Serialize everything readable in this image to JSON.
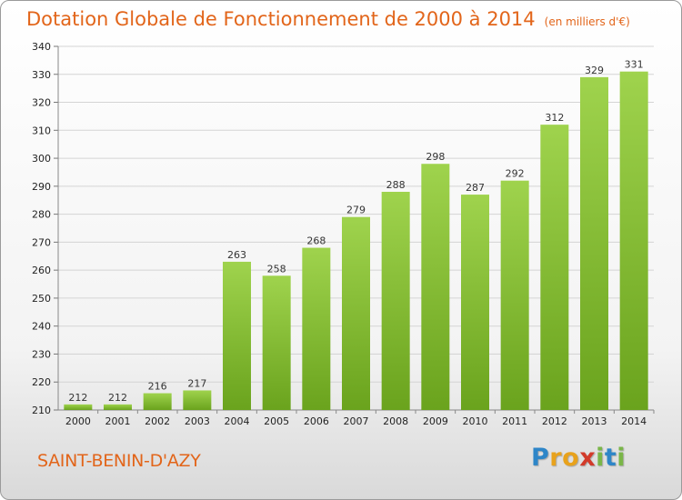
{
  "chart_data": {
    "type": "bar",
    "title": "Dotation Globale de Fonctionnement de 2000 à 2014",
    "unit": "(en milliers d'€)",
    "categories": [
      "2000",
      "2001",
      "2002",
      "2003",
      "2004",
      "2005",
      "2006",
      "2007",
      "2008",
      "2009",
      "2010",
      "2011",
      "2012",
      "2013",
      "2014"
    ],
    "values": [
      212,
      212,
      216,
      217,
      263,
      258,
      268,
      279,
      288,
      298,
      287,
      292,
      312,
      329,
      331
    ],
    "ylim": [
      210,
      340
    ],
    "yticks": [
      210,
      220,
      230,
      240,
      250,
      260,
      270,
      280,
      290,
      300,
      310,
      320,
      330,
      340
    ],
    "grid": true,
    "bar_color": "#8cc63f"
  },
  "footer": {
    "place": "SAINT-BENIN-D'AZY",
    "logo_letters": [
      {
        "ch": "P",
        "color": "#2e86c8"
      },
      {
        "ch": "r",
        "color": "#e8a21c"
      },
      {
        "ch": "o",
        "color": "#e8a21c"
      },
      {
        "ch": "x",
        "color": "#d23a2a"
      },
      {
        "ch": "i",
        "color": "#7ab648"
      },
      {
        "ch": "t",
        "color": "#2e86c8"
      },
      {
        "ch": "i",
        "color": "#7ab648"
      }
    ]
  }
}
